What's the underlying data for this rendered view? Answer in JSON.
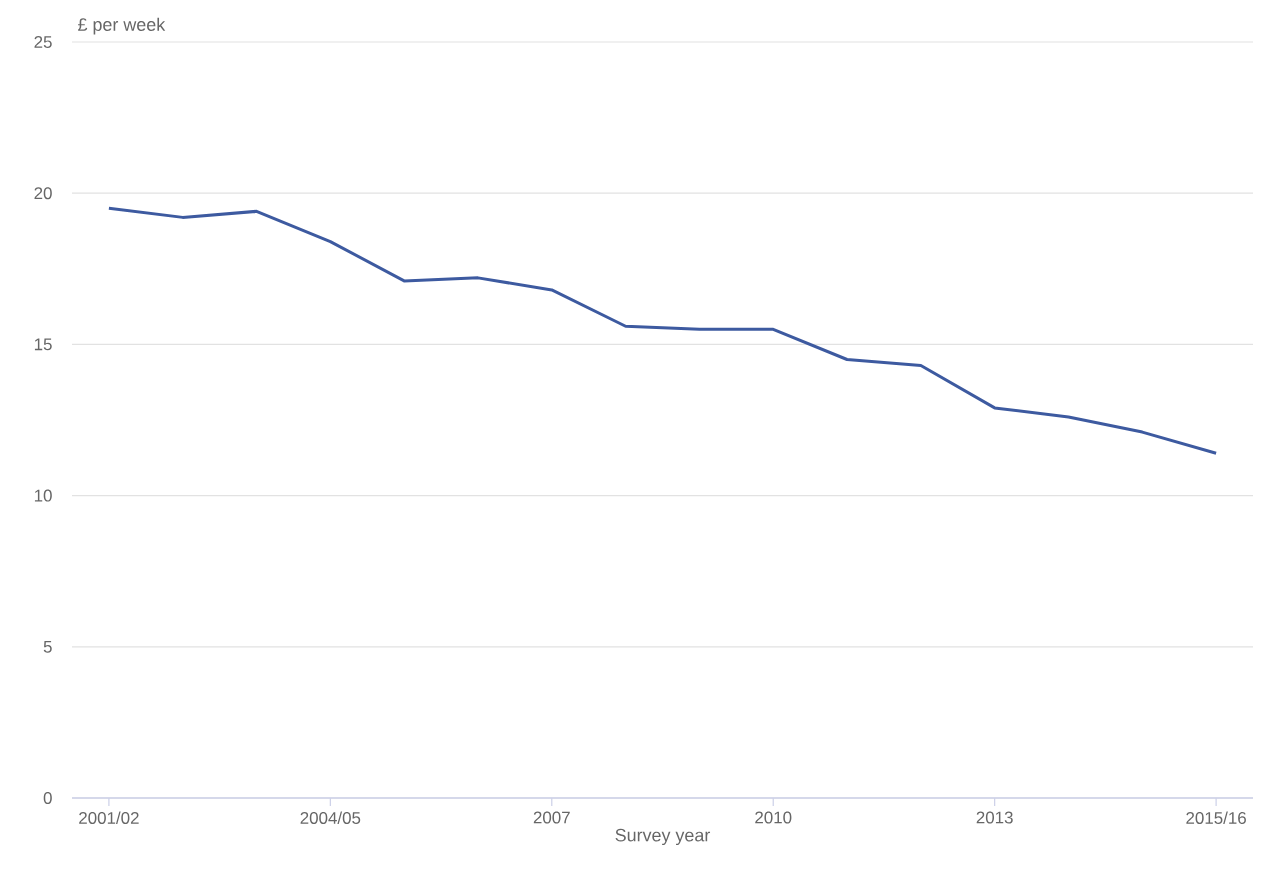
{
  "chart_data": {
    "type": "line",
    "ylabel": "£ per week",
    "xlabel": "Survey year",
    "categories": [
      "2001/02",
      null,
      null,
      "2004/05",
      null,
      null,
      "2007",
      null,
      null,
      "2010",
      null,
      null,
      "2013",
      null,
      null,
      "2015/16"
    ],
    "values": [
      19.5,
      19.2,
      19.4,
      18.4,
      17.1,
      17.2,
      16.8,
      15.6,
      15.5,
      15.5,
      14.5,
      14.3,
      12.9,
      12.6,
      12.1,
      11.4
    ],
    "color": "#3d5aa0",
    "ylim": [
      0,
      25
    ],
    "yticks": [
      0,
      5,
      10,
      15,
      20,
      25
    ],
    "grid": "y"
  }
}
